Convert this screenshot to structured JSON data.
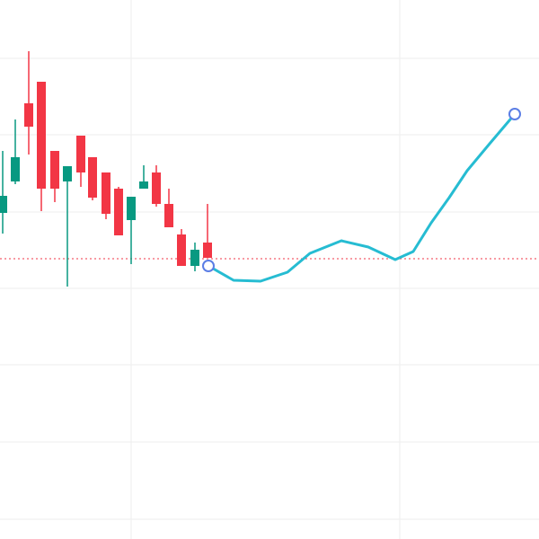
{
  "chart_data": {
    "type": "candlestick",
    "xlim": [
      0,
      600
    ],
    "ylim": [
      0,
      600
    ],
    "xticks": [
      146,
      445
    ],
    "yticks": [
      535,
      450,
      364,
      279,
      194,
      108,
      22
    ],
    "grid": true,
    "up_color": "#089981",
    "down_color": "#f23645",
    "x": [
      3,
      17,
      32,
      46,
      61,
      75,
      90,
      103,
      118,
      132,
      146,
      160,
      174,
      188,
      202,
      217,
      231
    ],
    "open": [
      363,
      398,
      485,
      509,
      432,
      398,
      449,
      425,
      408,
      390,
      355,
      390,
      408,
      373,
      339,
      304,
      330
    ],
    "high": [
      432,
      467,
      543,
      509,
      432,
      415,
      449,
      425,
      408,
      392,
      381,
      416,
      416,
      390,
      345,
      330,
      373
    ],
    "low": [
      340,
      395,
      428,
      365,
      375,
      281,
      392,
      377,
      356,
      338,
      306,
      390,
      370,
      347,
      304,
      298,
      313
    ],
    "close": [
      382,
      425,
      459,
      390,
      390,
      415,
      408,
      380,
      362,
      338,
      381,
      398,
      373,
      347,
      304,
      322,
      313
    ],
    "reference_line": {
      "value": 312,
      "color": "#f23645"
    },
    "overlay": {
      "type": "line",
      "color": "#26bcd2",
      "handle_color": "#5b7ee5",
      "x": [
        232,
        260,
        290,
        320,
        345,
        380,
        410,
        440,
        460,
        480,
        500,
        520,
        545,
        573
      ],
      "values": [
        304,
        288,
        287,
        297,
        318,
        332,
        325,
        311,
        320,
        352,
        380,
        410,
        440,
        473
      ]
    }
  }
}
